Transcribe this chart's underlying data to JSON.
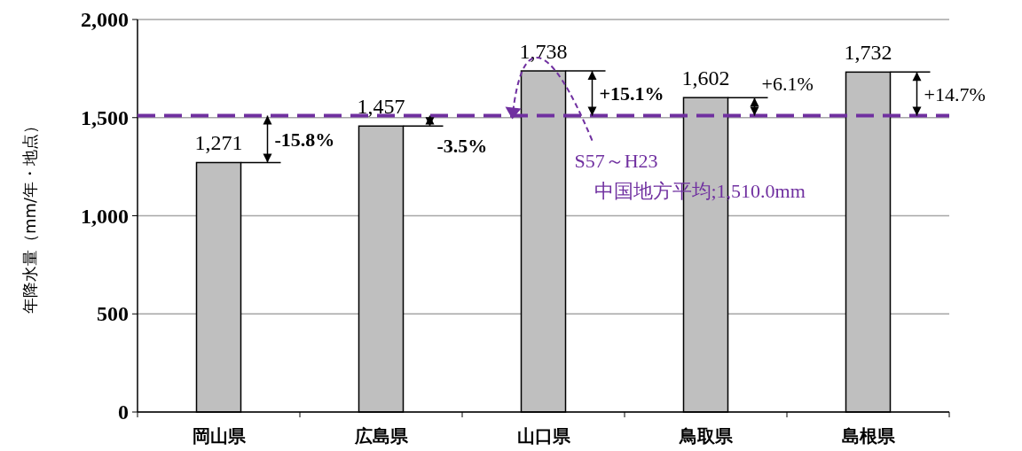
{
  "chart_data": {
    "type": "bar",
    "ylabel": "年降水量（mm/年・地点）",
    "categories": [
      "岡山県",
      "広島県",
      "山口県",
      "鳥取県",
      "島根県"
    ],
    "values": [
      1271,
      1457,
      1738,
      1602,
      1732
    ],
    "color": "#bfbfbf",
    "value_labels": [
      "1,271",
      "1,457",
      "1,738",
      "1,602",
      "1,732"
    ],
    "ylim": [
      0,
      2000
    ],
    "yticks": [
      {
        "value": 0,
        "label": "0"
      },
      {
        "value": 500,
        "label": "500"
      },
      {
        "value": 1000,
        "label": "1,000"
      },
      {
        "value": 1500,
        "label": "1,500"
      },
      {
        "value": 2000,
        "label": "2,000"
      }
    ],
    "grid": "y",
    "ref_lines": [
      {
        "axis": "y",
        "value": 1510,
        "label": "S57～H23\n中国地方平均;1,510.0mm",
        "color": "#7030a0",
        "line_style": "dashed"
      }
    ],
    "annotations": [
      {
        "text": "-15.8%",
        "x": "岡山県",
        "y": 1271
      },
      {
        "text": "-3.5%",
        "x": "広島県",
        "y": 1457
      },
      {
        "text": "+15.1%",
        "x": "山口県",
        "y": 1738
      },
      {
        "text": "+6.1%",
        "x": "鳥取県",
        "y": 1602
      },
      {
        "text": "+14.7%",
        "x": "島根県",
        "y": 1732
      }
    ]
  }
}
